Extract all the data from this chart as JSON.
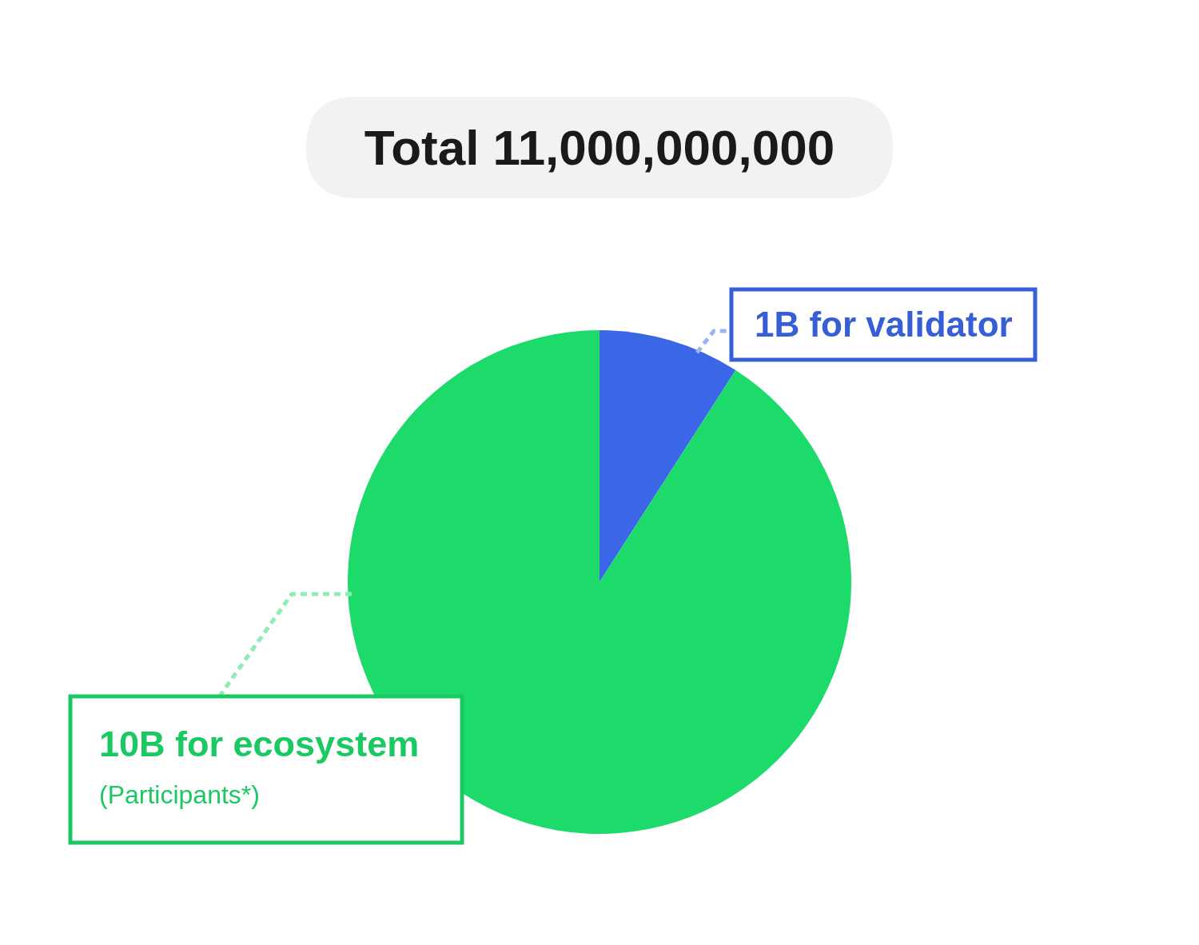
{
  "chart_data": {
    "type": "pie",
    "title": "Total 11,000,000,000",
    "categories": [
      "1B for validator",
      "10B for ecosystem"
    ],
    "values": [
      1,
      10
    ],
    "colors": [
      "#3b66e8",
      "#1ddb6b"
    ],
    "annotations": [
      "(Participants*)"
    ]
  }
}
